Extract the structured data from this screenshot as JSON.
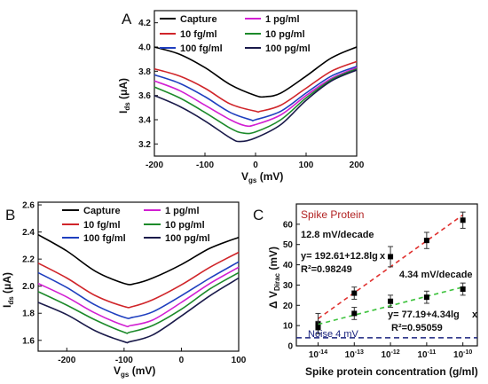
{
  "chart_data": [
    {
      "panel": "A",
      "type": "line",
      "xlabel": "V",
      "xlabel_sub": "gs",
      "xlabel_unit": " (mV)",
      "ylabel": "I",
      "ylabel_sub": "ds",
      "ylabel_unit": " (μA)",
      "xlim": [
        -200,
        200
      ],
      "ylim": [
        3.1,
        4.3
      ],
      "xticks": [
        "-200",
        "-100",
        "0",
        "100",
        "200"
      ],
      "xtick_values": [
        -200,
        -100,
        0,
        100,
        200
      ],
      "yticks": [
        "3.2",
        "3.4",
        "3.6",
        "3.8",
        "4.0",
        "4.2"
      ],
      "ytick_values": [
        3.2,
        3.4,
        3.6,
        3.8,
        4.0,
        4.2
      ],
      "series": [
        {
          "name": "Capture",
          "color": "#000000",
          "x": [
            -200,
            -150,
            -100,
            -50,
            0,
            20,
            50,
            100,
            150,
            200
          ],
          "y": [
            4.0,
            3.94,
            3.83,
            3.69,
            3.6,
            3.59,
            3.62,
            3.76,
            3.91,
            4.0
          ]
        },
        {
          "name": "10 fg/ml",
          "color": "#d0252a",
          "x": [
            -200,
            -150,
            -100,
            -50,
            0,
            10,
            50,
            100,
            150,
            200
          ],
          "y": [
            3.82,
            3.76,
            3.66,
            3.53,
            3.47,
            3.47,
            3.52,
            3.66,
            3.8,
            3.88
          ]
        },
        {
          "name": "100 fg/ml",
          "color": "#1f3fbf",
          "x": [
            -200,
            -150,
            -100,
            -50,
            -10,
            0,
            50,
            100,
            150,
            200
          ],
          "y": [
            3.77,
            3.7,
            3.59,
            3.46,
            3.4,
            3.4,
            3.47,
            3.62,
            3.76,
            3.84
          ]
        },
        {
          "name": "1 pg/ml",
          "color": "#d21fd2",
          "x": [
            -200,
            -150,
            -100,
            -50,
            -20,
            0,
            50,
            100,
            150,
            200
          ],
          "y": [
            3.72,
            3.64,
            3.52,
            3.4,
            3.35,
            3.36,
            3.44,
            3.6,
            3.74,
            3.83
          ]
        },
        {
          "name": "10 pg/ml",
          "color": "#1c8a2a",
          "x": [
            -200,
            -150,
            -100,
            -50,
            -25,
            0,
            50,
            100,
            150,
            200
          ],
          "y": [
            3.67,
            3.58,
            3.46,
            3.33,
            3.29,
            3.3,
            3.4,
            3.58,
            3.73,
            3.82
          ]
        },
        {
          "name": "100 pg/ml",
          "color": "#1a1a4a",
          "x": [
            -200,
            -150,
            -100,
            -50,
            -30,
            0,
            50,
            100,
            150,
            200
          ],
          "y": [
            3.6,
            3.51,
            3.39,
            3.25,
            3.22,
            3.25,
            3.36,
            3.56,
            3.72,
            3.81
          ]
        }
      ]
    },
    {
      "panel": "B",
      "type": "line",
      "xlabel": "V",
      "xlabel_sub": "gs",
      "xlabel_unit": " (mV)",
      "ylabel": "I",
      "ylabel_sub": "ds",
      "ylabel_unit": " (μA)",
      "xlim": [
        -250,
        100
      ],
      "ylim": [
        1.52,
        2.62
      ],
      "xticks": [
        "-200",
        "-100",
        "0",
        "100"
      ],
      "xtick_values": [
        -200,
        -100,
        0,
        100
      ],
      "yticks": [
        "1.6",
        "1.8",
        "2.0",
        "2.2",
        "2.4",
        "2.6"
      ],
      "ytick_values": [
        1.6,
        1.8,
        2.0,
        2.2,
        2.4,
        2.6
      ],
      "series": [
        {
          "name": "Capture",
          "color": "#000000",
          "x": [
            -250,
            -200,
            -150,
            -100,
            -80,
            -50,
            0,
            50,
            100
          ],
          "y": [
            2.38,
            2.26,
            2.11,
            2.02,
            2.02,
            2.06,
            2.16,
            2.28,
            2.36
          ]
        },
        {
          "name": "10 fg/ml",
          "color": "#d0252a",
          "x": [
            -250,
            -200,
            -150,
            -100,
            -85,
            -50,
            0,
            50,
            100
          ],
          "y": [
            2.17,
            2.06,
            1.93,
            1.85,
            1.85,
            1.9,
            2.01,
            2.14,
            2.25
          ]
        },
        {
          "name": "100 fg/ml",
          "color": "#1f3fbf",
          "x": [
            -250,
            -200,
            -150,
            -100,
            -85,
            -50,
            0,
            50,
            100
          ],
          "y": [
            2.1,
            1.99,
            1.86,
            1.77,
            1.77,
            1.81,
            1.93,
            2.06,
            2.18
          ]
        },
        {
          "name": "1 pg/ml",
          "color": "#d21fd2",
          "x": [
            -250,
            -200,
            -150,
            -100,
            -88,
            -50,
            0,
            50,
            100
          ],
          "y": [
            2.02,
            1.92,
            1.8,
            1.71,
            1.71,
            1.75,
            1.88,
            2.02,
            2.14
          ]
        },
        {
          "name": "10 pg/ml",
          "color": "#1c8a2a",
          "x": [
            -250,
            -200,
            -150,
            -100,
            -90,
            -50,
            0,
            50,
            100
          ],
          "y": [
            1.96,
            1.86,
            1.75,
            1.66,
            1.66,
            1.71,
            1.83,
            1.98,
            2.1
          ]
        },
        {
          "name": "100 pg/ml",
          "color": "#1a1a4a",
          "x": [
            -250,
            -200,
            -150,
            -100,
            -90,
            -50,
            0,
            50,
            100
          ],
          "y": [
            1.88,
            1.79,
            1.67,
            1.59,
            1.59,
            1.64,
            1.78,
            1.93,
            2.06
          ]
        }
      ]
    },
    {
      "panel": "C",
      "type": "scatter",
      "xlabel": "Spike protein concentration (g/ml)",
      "ylabel": "Δ V",
      "ylabel_sub": "Dirac",
      "ylabel_unit": " (mV)",
      "xscale": "log",
      "xlim": [
        -14.6,
        -9.6
      ],
      "ylim": [
        0,
        70
      ],
      "xticks": [
        "10",
        "10",
        "10",
        "10",
        "10"
      ],
      "xtick_exponents": [
        "-14",
        "-13",
        "-12",
        "-11",
        "-10"
      ],
      "xtick_values": [
        -14,
        -13,
        -12,
        -11,
        -10
      ],
      "yticks": [
        "0",
        "10",
        "20",
        "30",
        "40",
        "50",
        "60"
      ],
      "ytick_values": [
        0,
        10,
        20,
        30,
        40,
        50,
        60
      ],
      "series": [
        {
          "name": "Spike Protein",
          "color": "#000000",
          "fit_color": "#e0312f",
          "x": [
            -14,
            -13,
            -12,
            -11,
            -10
          ],
          "y": [
            11,
            26,
            44,
            52,
            62
          ],
          "err": [
            5,
            3,
            5,
            4,
            4
          ],
          "fit_label": "12.8 mV/decade",
          "equation": "y= 192.61+12.8lg",
          "r2": "R²=0.98249"
        },
        {
          "name": "",
          "color": "#000000",
          "fit_color": "#3ec33e",
          "x": [
            -14,
            -13,
            -12,
            -11,
            -10
          ],
          "y": [
            9,
            16,
            22,
            24,
            28
          ],
          "err": [
            3,
            3,
            3,
            3,
            3
          ],
          "fit_label": "4.34 mV/decade",
          "equation": "y= 77.19+4.34lg",
          "r2": "R²=0.95059"
        }
      ],
      "noise": {
        "label": "Noise 4 mV",
        "y": 4,
        "color": "#1a237e"
      },
      "title_text": "Spike Protein",
      "title_color": "#b22222",
      "marker_symbol": "x"
    }
  ]
}
